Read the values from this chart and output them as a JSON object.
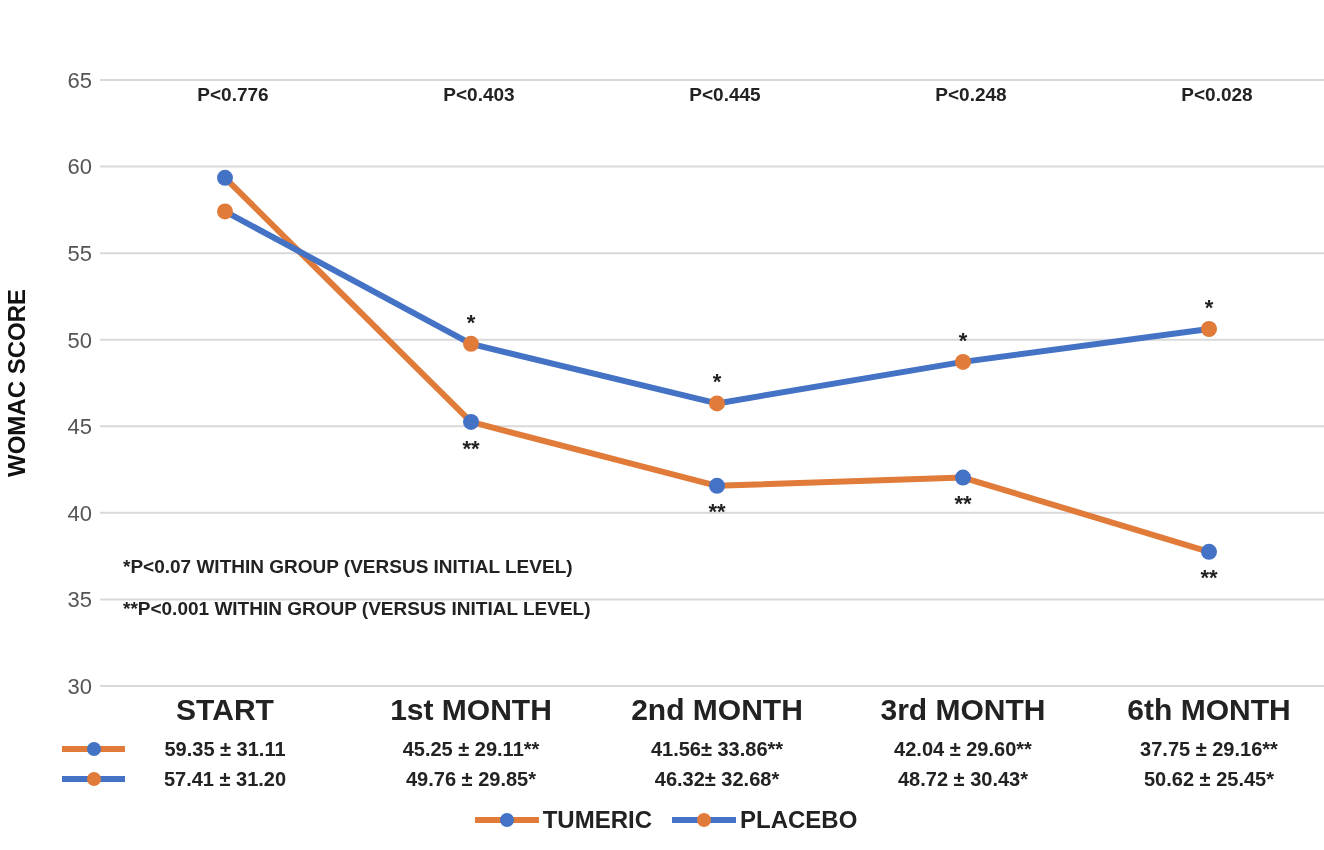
{
  "chart_data": {
    "type": "line",
    "ylabel": "WOMAC SCORE",
    "categories": [
      "START",
      "1st MONTH",
      "2nd MONTH",
      "3rd MONTH",
      "6th MONTH"
    ],
    "series": [
      {
        "name": "TUMERIC",
        "color": "#e07b39",
        "colors": [
          "#4472c4",
          "#4472c4",
          "#4472c4",
          "#4472c4",
          "#4472c4"
        ],
        "values": [
          59.35,
          45.25,
          41.56,
          42.04,
          37.75
        ],
        "value_labels": [
          "59.35 ± 31.11",
          "45.25 ± 29.11**",
          "41.56± 33.86**",
          "42.04 ± 29.60**",
          "37.75 ± 29.16**"
        ]
      },
      {
        "name": "PLACEBO",
        "color": "#4472c4",
        "colors": [
          "#e07b39",
          "#e07b39",
          "#e07b39",
          "#e07b39",
          "#e07b39"
        ],
        "values": [
          57.41,
          49.76,
          46.32,
          48.72,
          50.62
        ],
        "value_labels": [
          "57.41 ± 31.20",
          "49.76 ± 29.85*",
          "46.32± 32.68*",
          "48.72 ± 30.43*",
          "50.62 ± 25.45*"
        ]
      }
    ],
    "ylim": [
      30,
      65
    ],
    "yticks": [
      30,
      35,
      40,
      45,
      50,
      55,
      60,
      65
    ],
    "grid": "y",
    "legend": "bottom",
    "marker": "circle",
    "annotations": [
      "P<0.776",
      "P<0.403",
      "P<0.445",
      "P<0.248",
      "P<0.028",
      {
        "text": "*",
        "x": "1st MONTH",
        "y": 49.76
      },
      {
        "text": "*",
        "x": "2nd MONTH",
        "y": 46.32
      },
      {
        "text": "*",
        "x": "3rd MONTH",
        "y": 48.72
      },
      {
        "text": "*",
        "x": "6th MONTH",
        "y": 50.62
      },
      {
        "text": "**",
        "x": "1st MONTH",
        "y": 45.25
      },
      {
        "text": "**",
        "x": "2nd MONTH",
        "y": 41.56
      },
      {
        "text": "**",
        "x": "3rd MONTH",
        "y": 42.04
      },
      {
        "text": "**",
        "x": "6th MONTH",
        "y": 37.75
      },
      "*P<0.07 WITHIN GROUP (VERSUS INITIAL LEVEL)",
      "**P<0.001 WITHIN GROUP (VERSUS INITIAL LEVEL)"
    ]
  }
}
